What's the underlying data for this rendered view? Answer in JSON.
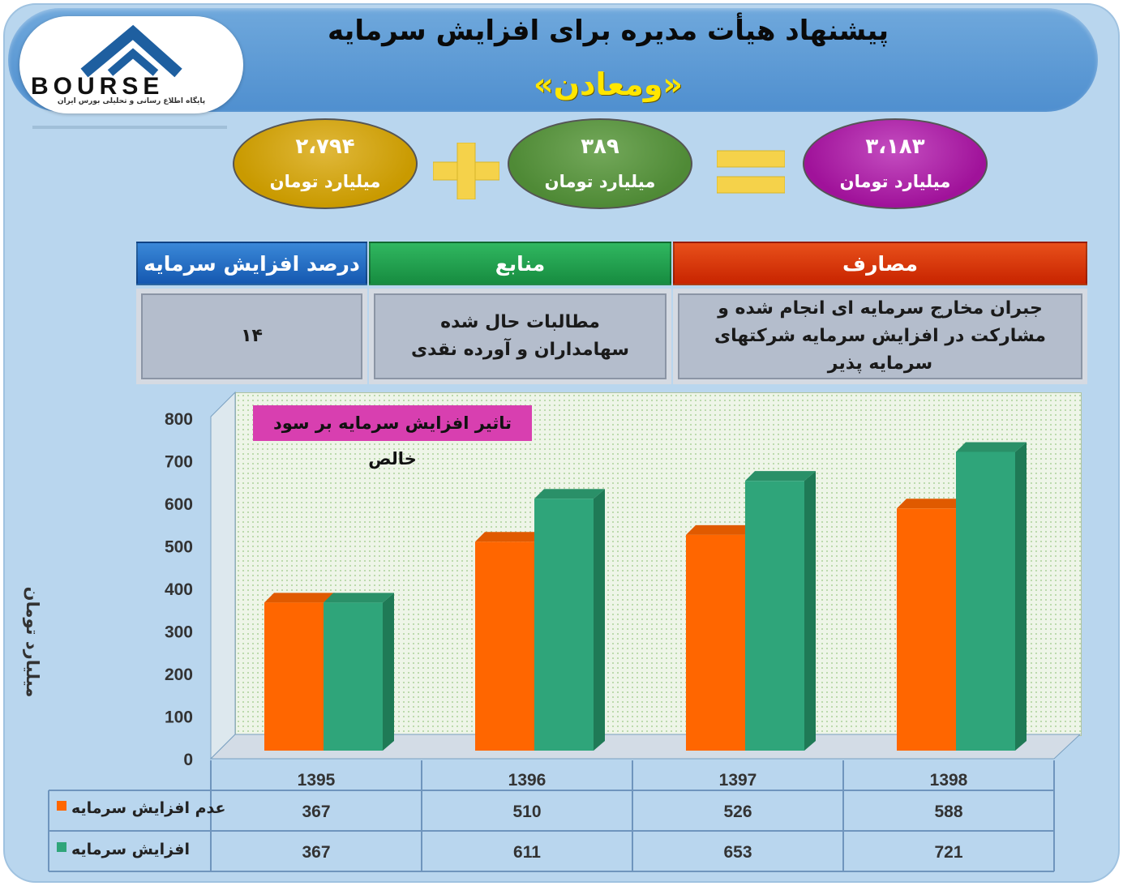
{
  "header": {
    "title_line1": "پیشنهاد هیأت مدیره برای افزایش سرمایه",
    "title_line2": "«ومعادن»",
    "logo_text": "BOURSE",
    "logo_subtitle": "پایگاه اطلاع رسانی و تحلیلی بورس ایران"
  },
  "equation": {
    "items": [
      {
        "value": "۲،۷۹۴",
        "unit": "میلیارد تومان",
        "color": "#c99a00"
      },
      {
        "value": "۳۸۹",
        "unit": "میلیارد تومان",
        "color": "#4f8a36"
      },
      {
        "value": "۳،۱۸۳",
        "unit": "میلیارد تومان",
        "color": "#a0129a"
      }
    ],
    "plus_color": "#f5d24a",
    "equals_color": "#f5d24a"
  },
  "table": {
    "headers": {
      "percent": "درصد افزایش سرمایه",
      "sources": "منابع",
      "uses": "مصارف"
    },
    "cells": {
      "percent": "۱۴",
      "sources": "مطالبات حال شده سهامداران و آورده نقدی",
      "uses": "جبران مخارج سرمایه ای انجام شده و مشارکت در افزایش سرمایه شرکتهای سرمایه پذیر"
    },
    "colors": {
      "percent": "#1f6fc8",
      "sources": "#1e9a4a",
      "uses": "#d22c00"
    }
  },
  "chart_data": {
    "type": "bar",
    "title": "تاثیر افزایش سرمایه بر سود خالص",
    "ylabel": "میلیارد تومان",
    "xlabel": "",
    "categories": [
      "1395",
      "1396",
      "1397",
      "1398"
    ],
    "ylim": [
      0,
      800
    ],
    "yticks": [
      0,
      100,
      200,
      300,
      400,
      500,
      600,
      700,
      800
    ],
    "series": [
      {
        "name": "عدم افزایش سرمایه",
        "values": [
          367,
          510,
          526,
          588
        ],
        "color": "#ff6600"
      },
      {
        "name": "افزایش سرمایه",
        "values": [
          367,
          611,
          653,
          721
        ],
        "color": "#2fa57a"
      }
    ],
    "data_table": true,
    "grid": false,
    "legend": "data-table"
  }
}
